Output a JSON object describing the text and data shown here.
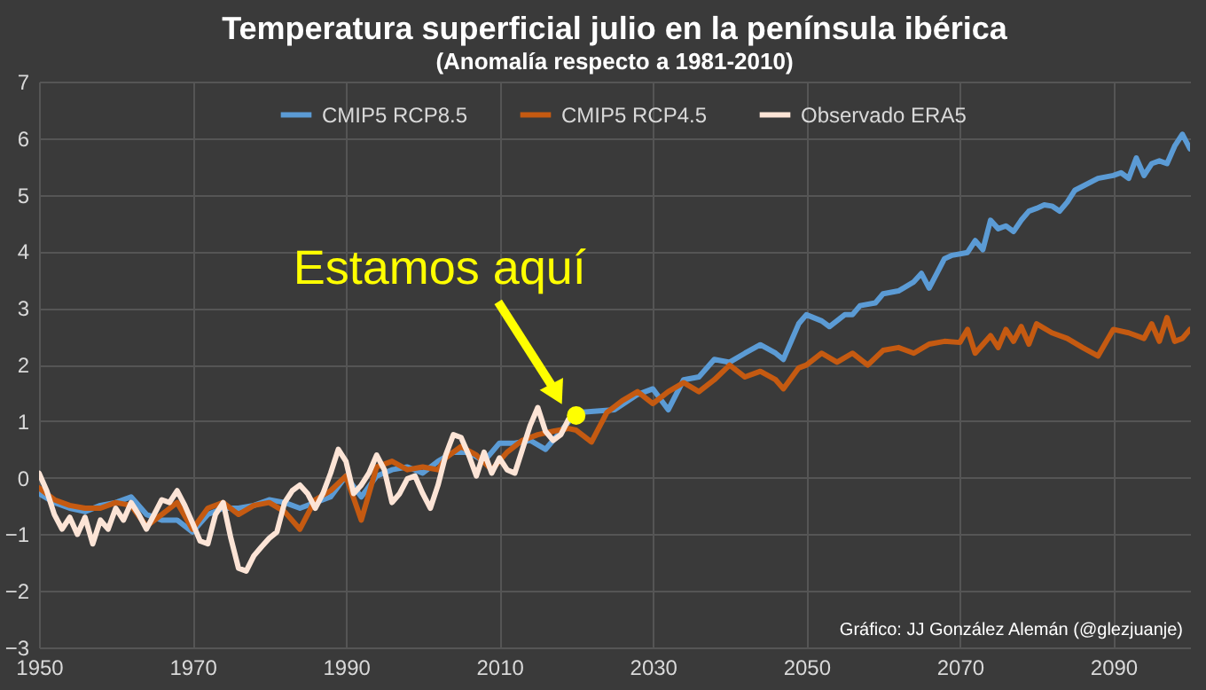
{
  "chart_data": {
    "type": "line",
    "title": "Temperatura superficial julio en la península ibérica",
    "subtitle": "(Anomalía respecto a 1981-2010)",
    "xlim": [
      1950,
      2100
    ],
    "xticks": [
      1950,
      1970,
      1990,
      2010,
      2030,
      2050,
      2070,
      2090
    ],
    "ylim": [
      -3,
      7
    ],
    "yticks": [
      -3,
      -2,
      -1,
      0,
      1,
      2,
      3,
      4,
      5,
      6,
      7
    ],
    "grid": true,
    "legend": "top",
    "line_style": "solid",
    "series": [
      {
        "name": "CMIP5 RCP8.5",
        "color": "#5b9bd5",
        "x": [
          1950,
          1952,
          1954,
          1956,
          1958,
          1960,
          1962,
          1964,
          1966,
          1968,
          1970,
          1972,
          1974,
          1976,
          1978,
          1980,
          1982,
          1984,
          1986,
          1988,
          1990,
          1992,
          1994,
          1996,
          1998,
          2000,
          2002,
          2004,
          2006,
          2008,
          2010,
          2012,
          2014,
          2016,
          2018,
          2020,
          2025,
          2028,
          2030,
          2032,
          2034,
          2036,
          2038,
          2040,
          2042,
          2044,
          2046,
          2047,
          2049,
          2050,
          2052,
          2053,
          2055,
          2056,
          2057,
          2059,
          2060,
          2062,
          2064,
          2065,
          2066,
          2067,
          2068,
          2069,
          2071,
          2072,
          2073,
          2074,
          2075,
          2076,
          2077,
          2078,
          2079,
          2080,
          2081,
          2082,
          2083,
          2084,
          2085,
          2088,
          2090,
          2091,
          2092,
          2093,
          2094,
          2095,
          2096,
          2097,
          2098,
          2099,
          2100
        ],
        "values": [
          -0.28,
          -0.44,
          -0.54,
          -0.6,
          -0.49,
          -0.44,
          -0.34,
          -0.65,
          -0.75,
          -0.75,
          -0.96,
          -0.65,
          -0.54,
          -0.54,
          -0.49,
          -0.39,
          -0.44,
          -0.54,
          -0.44,
          -0.34,
          0.03,
          -0.34,
          0.03,
          0.14,
          0.19,
          0.08,
          0.29,
          0.45,
          0.45,
          0.29,
          0.61,
          0.61,
          0.66,
          0.5,
          0.82,
          1.15,
          1.2,
          1.47,
          1.57,
          1.2,
          1.73,
          1.78,
          2.09,
          2.04,
          2.2,
          2.35,
          2.2,
          2.09,
          2.72,
          2.88,
          2.77,
          2.67,
          2.88,
          2.88,
          3.04,
          3.09,
          3.25,
          3.3,
          3.46,
          3.61,
          3.35,
          3.61,
          3.87,
          3.93,
          3.98,
          4.19,
          4.03,
          4.55,
          4.4,
          4.45,
          4.35,
          4.55,
          4.71,
          4.76,
          4.82,
          4.8,
          4.71,
          4.87,
          5.08,
          5.29,
          5.34,
          5.39,
          5.29,
          5.65,
          5.34,
          5.55,
          5.6,
          5.55,
          5.86,
          6.07,
          5.81
        ]
      },
      {
        "name": "CMIP5 RCP4.5",
        "color": "#c55a11",
        "x": [
          1950,
          1952,
          1954,
          1956,
          1958,
          1960,
          1962,
          1964,
          1966,
          1968,
          1970,
          1972,
          1974,
          1976,
          1978,
          1980,
          1982,
          1984,
          1986,
          1988,
          1990,
          1992,
          1994,
          1996,
          1998,
          2000,
          2002,
          2003,
          2005,
          2007,
          2009,
          2011,
          2013,
          2015,
          2017,
          2019,
          2020,
          2022,
          2024,
          2026,
          2028,
          2030,
          2032,
          2034,
          2036,
          2038,
          2040,
          2042,
          2044,
          2046,
          2047,
          2049,
          2050,
          2052,
          2054,
          2056,
          2058,
          2060,
          2062,
          2064,
          2066,
          2068,
          2070,
          2071,
          2072,
          2074,
          2075,
          2076,
          2077,
          2078,
          2079,
          2080,
          2082,
          2084,
          2086,
          2088,
          2090,
          2092,
          2094,
          2095,
          2096,
          2097,
          2098,
          2099,
          2100
        ],
        "values": [
          -0.18,
          -0.39,
          -0.49,
          -0.54,
          -0.54,
          -0.44,
          -0.49,
          -0.86,
          -0.65,
          -0.44,
          -0.91,
          -0.54,
          -0.44,
          -0.65,
          -0.49,
          -0.44,
          -0.6,
          -0.91,
          -0.39,
          -0.23,
          0.03,
          -0.75,
          0.19,
          0.29,
          0.14,
          0.19,
          0.14,
          0.35,
          0.55,
          0.4,
          0.14,
          0.45,
          0.66,
          0.76,
          0.82,
          0.87,
          0.84,
          0.63,
          1.15,
          1.36,
          1.52,
          1.31,
          1.52,
          1.68,
          1.52,
          1.73,
          1.99,
          1.78,
          1.88,
          1.73,
          1.57,
          1.94,
          1.99,
          2.2,
          2.04,
          2.2,
          1.99,
          2.25,
          2.3,
          2.2,
          2.36,
          2.41,
          2.39,
          2.62,
          2.2,
          2.51,
          2.3,
          2.62,
          2.41,
          2.67,
          2.36,
          2.72,
          2.56,
          2.46,
          2.3,
          2.15,
          2.62,
          2.56,
          2.46,
          2.72,
          2.41,
          2.83,
          2.41,
          2.46,
          2.62
        ]
      },
      {
        "name": "Observado ERA5",
        "color": "#fce4d6",
        "x": [
          1950,
          1951,
          1952,
          1953,
          1954,
          1955,
          1956,
          1957,
          1958,
          1959,
          1960,
          1961,
          1962,
          1963,
          1964,
          1965,
          1966,
          1967,
          1968,
          1969,
          1970,
          1971,
          1972,
          1973,
          1974,
          1975,
          1976,
          1977,
          1978,
          1979,
          1980,
          1981,
          1982,
          1983,
          1984,
          1985,
          1986,
          1987,
          1988,
          1989,
          1990,
          1991,
          1992,
          1993,
          1994,
          1995,
          1996,
          1997,
          1998,
          1999,
          2000,
          2001,
          2002,
          2003,
          2004,
          2005,
          2006,
          2007,
          2008,
          2009,
          2010,
          2011,
          2012,
          2013,
          2014,
          2015,
          2016,
          2017,
          2018,
          2019,
          2020
        ],
        "values": [
          0.08,
          -0.23,
          -0.65,
          -0.91,
          -0.7,
          -1.0,
          -0.7,
          -1.17,
          -0.75,
          -0.91,
          -0.54,
          -0.75,
          -0.44,
          -0.65,
          -0.91,
          -0.65,
          -0.39,
          -0.44,
          -0.23,
          -0.49,
          -0.8,
          -1.12,
          -1.17,
          -0.65,
          -0.44,
          -1.07,
          -1.6,
          -1.65,
          -1.38,
          -1.22,
          -1.07,
          -0.96,
          -0.44,
          -0.23,
          -0.13,
          -0.28,
          -0.54,
          -0.28,
          0.08,
          0.5,
          0.29,
          -0.28,
          -0.13,
          0.08,
          0.4,
          0.14,
          -0.44,
          -0.28,
          -0.02,
          0.03,
          -0.28,
          -0.54,
          -0.13,
          0.4,
          0.76,
          0.71,
          0.4,
          0.03,
          0.45,
          0.08,
          0.35,
          0.14,
          0.08,
          0.5,
          0.92,
          1.24,
          0.82,
          0.66,
          0.76,
          1.03,
          1.08
        ]
      }
    ],
    "annotations": [
      {
        "text": "Estamos aquí",
        "x": 2020,
        "y": 1.1
      },
      "Gráfico: JJ González Alemán (@glezjuanje)"
    ]
  }
}
